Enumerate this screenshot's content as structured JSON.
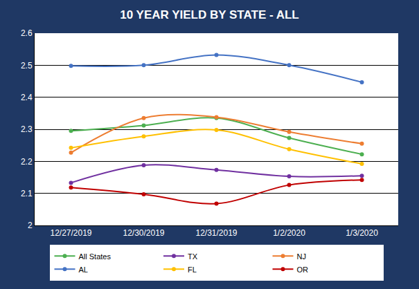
{
  "chart_data": {
    "type": "line",
    "title": "10 YEAR YIELD BY STATE - ALL",
    "categories": [
      "12/27/2019",
      "12/30/2019",
      "12/31/2019",
      "1/2/2020",
      "1/3/2020"
    ],
    "series": [
      {
        "name": "All States",
        "color": "#4caf50",
        "values": [
          2.295,
          2.312,
          2.335,
          2.273,
          2.222
        ]
      },
      {
        "name": "TX",
        "color": "#7030a0",
        "values": [
          2.133,
          2.188,
          2.173,
          2.153,
          2.155
        ]
      },
      {
        "name": "NJ",
        "color": "#ed7d31",
        "values": [
          2.227,
          2.335,
          2.338,
          2.292,
          2.255
        ]
      },
      {
        "name": "AL",
        "color": "#4472c4",
        "values": [
          2.498,
          2.5,
          2.532,
          2.5,
          2.447
        ]
      },
      {
        "name": "FL",
        "color": "#ffc000",
        "values": [
          2.242,
          2.278,
          2.298,
          2.238,
          2.192
        ]
      },
      {
        "name": "OR",
        "color": "#c00000",
        "values": [
          2.118,
          2.097,
          2.068,
          2.126,
          2.142
        ]
      }
    ],
    "ylim": [
      2,
      2.6
    ],
    "yticks": [
      2,
      2.1,
      2.2,
      2.3,
      2.4,
      2.5,
      2.6
    ],
    "grid": true,
    "legend": "bottom",
    "marker": "circle",
    "line_style": "smooth"
  }
}
